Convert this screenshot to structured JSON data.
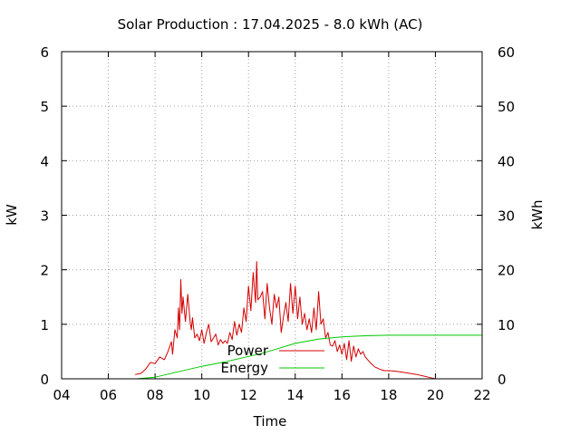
{
  "chart_data": {
    "type": "line",
    "title": "Solar Production : 17.04.2025 - 8.0 kWh (AC)",
    "xlabel": "Time",
    "ylabel_left": "kW",
    "ylabel_right": "kWh",
    "xlim": [
      4,
      22
    ],
    "ylim_left": [
      0,
      6
    ],
    "ylim_right": [
      0,
      60
    ],
    "x_ticks": [
      "04",
      "06",
      "08",
      "10",
      "12",
      "14",
      "16",
      "18",
      "20",
      "22"
    ],
    "y_ticks_left": [
      "0",
      "1",
      "2",
      "3",
      "4",
      "5",
      "6"
    ],
    "y_ticks_right": [
      "0",
      "10",
      "20",
      "30",
      "40",
      "50",
      "60"
    ],
    "grid": true,
    "legend_position": "bottom-center",
    "series": [
      {
        "name": "Power",
        "axis": "left",
        "color": "#d40000",
        "x": [
          7.15,
          7.4,
          7.6,
          7.8,
          8.0,
          8.2,
          8.4,
          8.55,
          8.7,
          8.75,
          8.85,
          8.95,
          9.0,
          9.05,
          9.1,
          9.15,
          9.2,
          9.3,
          9.4,
          9.5,
          9.55,
          9.6,
          9.7,
          9.8,
          9.9,
          10.0,
          10.1,
          10.2,
          10.3,
          10.4,
          10.5,
          10.6,
          10.7,
          10.8,
          10.9,
          11.0,
          11.1,
          11.2,
          11.3,
          11.4,
          11.5,
          11.6,
          11.7,
          11.8,
          11.9,
          12.0,
          12.1,
          12.2,
          12.3,
          12.35,
          12.4,
          12.5,
          12.6,
          12.7,
          12.8,
          12.9,
          13.0,
          13.1,
          13.2,
          13.3,
          13.4,
          13.5,
          13.6,
          13.7,
          13.8,
          13.9,
          14.0,
          14.1,
          14.2,
          14.3,
          14.4,
          14.5,
          14.6,
          14.7,
          14.8,
          14.9,
          15.0,
          15.1,
          15.2,
          15.3,
          15.4,
          15.5,
          15.6,
          15.7,
          15.8,
          15.9,
          16.0,
          16.1,
          16.2,
          16.3,
          16.4,
          16.5,
          16.6,
          16.7,
          16.8,
          16.9,
          17.0,
          17.2,
          17.4,
          17.6,
          17.8,
          18.0,
          18.3,
          18.6,
          18.9,
          19.2,
          19.5,
          19.8,
          20.0
        ],
        "values": [
          0.08,
          0.1,
          0.18,
          0.3,
          0.28,
          0.4,
          0.35,
          0.5,
          0.68,
          0.45,
          0.9,
          0.75,
          1.3,
          0.9,
          1.82,
          1.2,
          1.5,
          1.05,
          1.55,
          1.05,
          0.9,
          1.12,
          0.75,
          0.82,
          0.7,
          0.9,
          0.65,
          0.85,
          1.0,
          0.68,
          0.75,
          0.82,
          0.62,
          0.72,
          0.65,
          0.7,
          0.65,
          0.85,
          0.72,
          1.05,
          0.8,
          1.0,
          0.85,
          1.3,
          1.05,
          1.7,
          1.25,
          1.95,
          1.4,
          2.15,
          1.45,
          1.5,
          1.6,
          1.1,
          1.75,
          1.3,
          1.0,
          1.55,
          1.3,
          1.5,
          0.85,
          1.15,
          1.4,
          1.05,
          1.75,
          1.2,
          1.7,
          1.1,
          1.5,
          1.0,
          1.2,
          0.9,
          1.1,
          0.85,
          1.3,
          0.9,
          1.6,
          1.0,
          1.1,
          0.75,
          0.85,
          0.62,
          0.6,
          0.7,
          0.5,
          0.62,
          0.45,
          0.65,
          0.35,
          0.7,
          0.32,
          0.6,
          0.4,
          0.55,
          0.45,
          0.5,
          0.4,
          0.3,
          0.22,
          0.18,
          0.15,
          0.15,
          0.14,
          0.12,
          0.1,
          0.08,
          0.05,
          0.02,
          0.0
        ]
      },
      {
        "name": "Energy",
        "axis": "right",
        "color": "#00c800",
        "x": [
          7.2,
          8.0,
          9.0,
          10.0,
          11.0,
          12.0,
          12.5,
          13.0,
          14.0,
          15.0,
          16.0,
          17.0,
          18.0,
          19.0,
          20.0,
          22.0
        ],
        "values": [
          0.0,
          0.3,
          1.3,
          2.3,
          3.1,
          4.1,
          4.6,
          5.2,
          6.5,
          7.3,
          7.7,
          7.9,
          8.0,
          8.0,
          8.0,
          8.0
        ]
      }
    ]
  }
}
